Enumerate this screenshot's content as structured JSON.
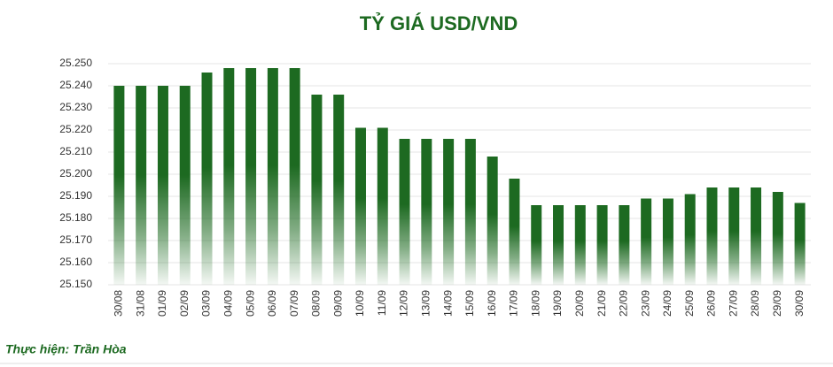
{
  "chart_data": {
    "type": "bar",
    "title": "TỶ GIÁ USD/VND",
    "categories": [
      "30/08",
      "31/08",
      "01/09",
      "02/09",
      "03/09",
      "04/09",
      "05/09",
      "06/09",
      "07/09",
      "08/09",
      "09/09",
      "10/09",
      "11/09",
      "12/09",
      "13/09",
      "14/09",
      "15/09",
      "16/09",
      "17/09",
      "18/09",
      "19/09",
      "20/09",
      "21/09",
      "22/09",
      "23/09",
      "24/09",
      "25/09",
      "26/09",
      "27/09",
      "28/09",
      "29/09",
      "30/09"
    ],
    "values": [
      25240,
      25240,
      25240,
      25240,
      25246,
      25248,
      25248,
      25248,
      25248,
      25236,
      25236,
      25221,
      25221,
      25216,
      25216,
      25216,
      25216,
      25208,
      25198,
      25186,
      25186,
      25186,
      25186,
      25186,
      25189,
      25189,
      25191,
      25194,
      25194,
      25194,
      25192,
      25187
    ],
    "color": "#1d6a21",
    "ylim": [
      25150,
      25250
    ],
    "yticks": [
      {
        "value": 25150,
        "label": "25.150"
      },
      {
        "value": 25160,
        "label": "25.160"
      },
      {
        "value": 25170,
        "label": "25.170"
      },
      {
        "value": 25180,
        "label": "25.180"
      },
      {
        "value": 25190,
        "label": "25.190"
      },
      {
        "value": 25200,
        "label": "25.200"
      },
      {
        "value": 25210,
        "label": "25.210"
      },
      {
        "value": 25220,
        "label": "25.220"
      },
      {
        "value": 25230,
        "label": "25.230"
      },
      {
        "value": 25240,
        "label": "25.240"
      },
      {
        "value": 25250,
        "label": "25.250"
      }
    ],
    "grid": true,
    "note": "Thực hiện: Trần Hòa"
  }
}
